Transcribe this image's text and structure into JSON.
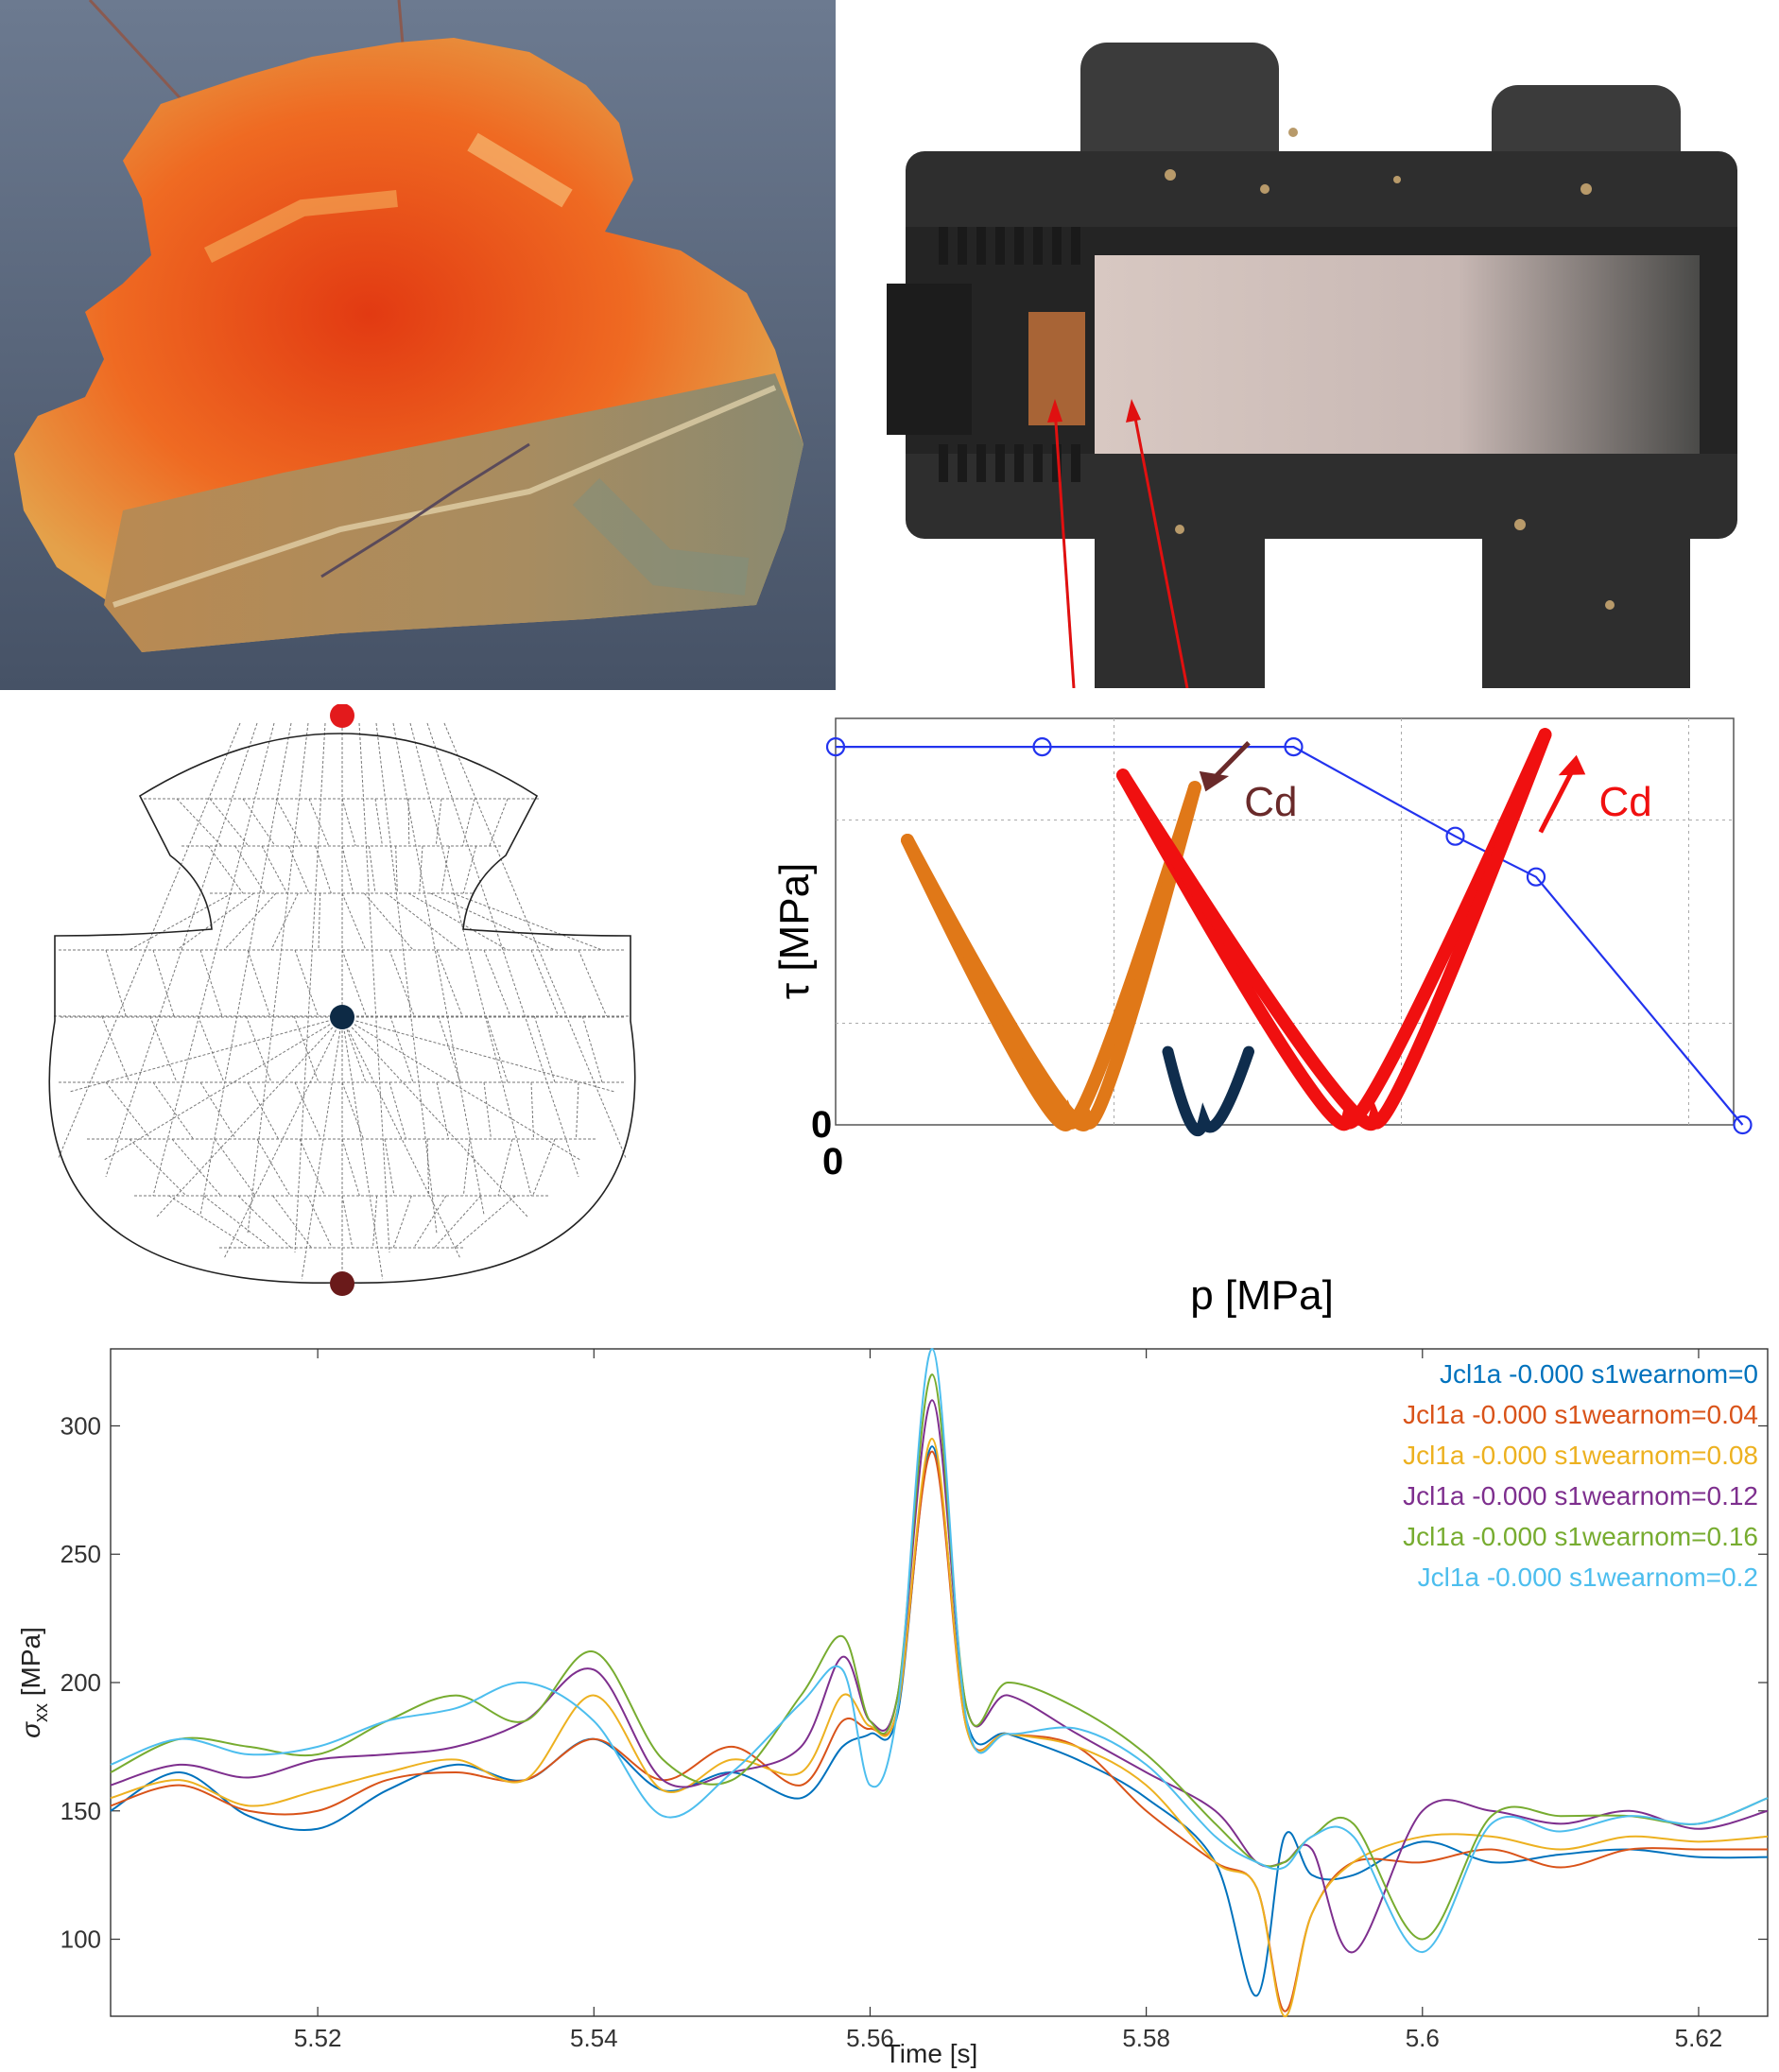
{
  "photo_left": {
    "icon": "fractured-rail-head-photo"
  },
  "photo_right": {
    "icon": "rail-wheel-contact-photo",
    "arrow_color": "#e01010"
  },
  "mesh": {
    "icon": "rail-head-finite-element-mesh",
    "marker_top_color": "#e31a1c",
    "marker_center_color": "#0d2a45",
    "marker_bottom_color": "#6a1a1a"
  },
  "chart_data": [
    {
      "type": "line",
      "title": "",
      "xlabel": "p [MPa]",
      "ylabel": "τ [MPa]",
      "x_origin_label": "0",
      "y_origin_label": "0",
      "xlim": [
        0,
        10
      ],
      "ylim": [
        0,
        10
      ],
      "grid": true,
      "series": [
        {
          "role": "limit-curve",
          "color": "#2233ee",
          "marker": "circle",
          "x": [
            0,
            2.3,
            5.1,
            6.9,
            7.8,
            10.1
          ],
          "y": [
            9.3,
            9.3,
            9.3,
            7.1,
            6.1,
            0
          ]
        },
        {
          "role": "loop",
          "color": "#e07818",
          "x": [
            0.8,
            2.6,
            4.0
          ],
          "y": [
            7.0,
            0.1,
            8.3
          ]
        },
        {
          "role": "loop",
          "color": "#e07818",
          "x": [
            0.8,
            2.8,
            4.0
          ],
          "y": [
            7.0,
            0.1,
            8.3
          ]
        },
        {
          "role": "loop",
          "color": "#0f2d4d",
          "x": [
            3.7,
            4.1,
            4.6
          ],
          "y": [
            1.8,
            0.1,
            1.8
          ]
        },
        {
          "role": "loop",
          "color": "#f01010",
          "x": [
            3.2,
            5.7,
            7.9
          ],
          "y": [
            8.6,
            0.1,
            9.6
          ]
        },
        {
          "role": "loop",
          "color": "#f01010",
          "x": [
            3.2,
            6.0,
            7.9
          ],
          "y": [
            8.6,
            0.1,
            9.6
          ]
        }
      ],
      "annotations": [
        {
          "text": "Cd",
          "color": "#6a2a2a"
        },
        {
          "text": "Cd",
          "color": "#f01010"
        }
      ]
    },
    {
      "type": "line",
      "title": "",
      "xlabel": "Time [s]",
      "ylabel": "σxx [MPa]",
      "ylabel_main": "σ",
      "ylabel_sub": "xx",
      "ylabel_unit": " [MPa]",
      "xlim": [
        5.505,
        5.625
      ],
      "ylim": [
        70,
        330
      ],
      "xticks": [
        5.52,
        5.54,
        5.56,
        5.58,
        5.6,
        5.62
      ],
      "xtick_labels": [
        "5.52",
        "5.54",
        "5.56",
        "5.58",
        "5.6",
        "5.62"
      ],
      "yticks": [
        100,
        150,
        200,
        250,
        300
      ],
      "ytick_labels": [
        "100",
        "150",
        "200",
        "250",
        "300"
      ],
      "grid": false,
      "legend_position": "top-right",
      "x": [
        5.505,
        5.51,
        5.515,
        5.52,
        5.525,
        5.53,
        5.535,
        5.54,
        5.545,
        5.55,
        5.555,
        5.558,
        5.56,
        5.562,
        5.5645,
        5.567,
        5.57,
        5.575,
        5.58,
        5.585,
        5.588,
        5.59,
        5.592,
        5.595,
        5.6,
        5.605,
        5.61,
        5.615,
        5.62,
        5.625
      ],
      "series": [
        {
          "name": "Jcl1a -0.000 s1wearnom=0",
          "color": "#0072bd",
          "y": [
            150,
            165,
            148,
            143,
            158,
            168,
            162,
            178,
            158,
            165,
            155,
            175,
            180,
            188,
            292,
            185,
            180,
            170,
            155,
            130,
            78,
            140,
            125,
            125,
            138,
            130,
            133,
            135,
            132,
            132
          ]
        },
        {
          "name": "Jcl1a -0.000 s1wearnom=0.04",
          "color": "#d95319",
          "y": [
            152,
            160,
            150,
            150,
            162,
            165,
            162,
            178,
            162,
            175,
            160,
            185,
            182,
            190,
            290,
            182,
            180,
            175,
            150,
            130,
            120,
            72,
            110,
            130,
            130,
            135,
            128,
            135,
            135,
            135
          ]
        },
        {
          "name": "Jcl1a -0.000 s1wearnom=0.08",
          "color": "#edb120",
          "y": [
            155,
            162,
            152,
            158,
            165,
            170,
            162,
            195,
            158,
            170,
            165,
            195,
            183,
            190,
            295,
            182,
            180,
            175,
            160,
            130,
            120,
            70,
            110,
            130,
            140,
            140,
            135,
            140,
            138,
            140
          ]
        },
        {
          "name": "Jcl1a -0.000 s1wearnom=0.12",
          "color": "#7e2f8e",
          "y": [
            160,
            168,
            163,
            170,
            172,
            175,
            185,
            205,
            162,
            165,
            175,
            210,
            185,
            195,
            310,
            190,
            195,
            180,
            165,
            150,
            130,
            130,
            135,
            95,
            150,
            150,
            145,
            150,
            143,
            150
          ]
        },
        {
          "name": "Jcl1a -0.000 s1wearnom=0.16",
          "color": "#77ac30",
          "y": [
            165,
            178,
            175,
            172,
            185,
            195,
            185,
            212,
            170,
            162,
            195,
            218,
            185,
            195,
            320,
            190,
            200,
            190,
            172,
            145,
            130,
            130,
            140,
            145,
            100,
            148,
            148,
            148,
            145,
            155
          ]
        },
        {
          "name": "Jcl1a -0.000 s1wearnom=0.2",
          "color": "#4dbeee",
          "y": [
            168,
            178,
            172,
            175,
            185,
            190,
            200,
            185,
            148,
            165,
            192,
            205,
            160,
            190,
            330,
            185,
            180,
            182,
            168,
            140,
            130,
            128,
            140,
            140,
            95,
            145,
            142,
            148,
            145,
            155
          ]
        }
      ]
    }
  ]
}
